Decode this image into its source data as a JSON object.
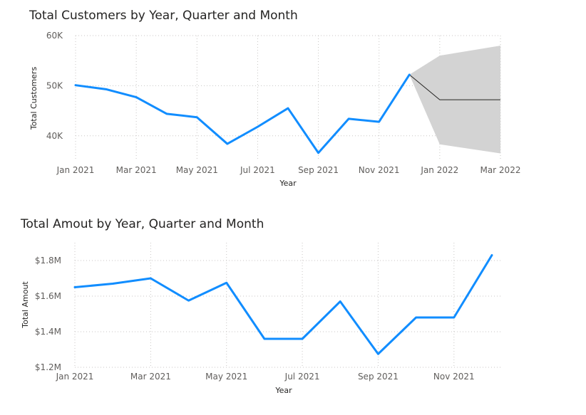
{
  "chart_data": [
    {
      "type": "line",
      "title": "Total Customers by Year, Quarter and Month",
      "xlabel": "Year",
      "ylabel": "Total Customers",
      "x_tick_labels": [
        "Jan 2021",
        "Mar 2021",
        "May 2021",
        "Jul 2021",
        "Sep 2021",
        "Nov 2021",
        "Jan 2022",
        "Mar 2022"
      ],
      "y_ticks": [
        40000,
        50000,
        60000
      ],
      "y_tick_labels": [
        "40K",
        "50K",
        "60K"
      ],
      "ylim": [
        35000,
        60000
      ],
      "grid": true,
      "series": [
        {
          "x": [
            "2021-01",
            "2021-02",
            "2021-03",
            "2021-04",
            "2021-05",
            "2021-06",
            "2021-07",
            "2021-08",
            "2021-09",
            "2021-10",
            "2021-11",
            "2021-12"
          ],
          "values": [
            50100,
            49300,
            47700,
            44400,
            43700,
            38400,
            41800,
            45500,
            36600,
            43400,
            42800,
            52200
          ],
          "color": "#118DFF"
        }
      ],
      "forecast": {
        "x": [
          "2021-12",
          "2022-01",
          "2022-02",
          "2022-03"
        ],
        "values": [
          52200,
          47200,
          47200,
          47200
        ],
        "upper": [
          52200,
          56000,
          57000,
          58000
        ],
        "lower": [
          52200,
          38300,
          37400,
          36500
        ],
        "line_color": "#252423",
        "band_color": "#d3d3d3"
      }
    },
    {
      "type": "line",
      "title": "Total Amout by Year, Quarter and Month",
      "xlabel": "Year",
      "ylabel": "Total Amout",
      "x_tick_labels": [
        "Jan 2021",
        "Mar 2021",
        "May 2021",
        "Jul 2021",
        "Sep 2021",
        "Nov 2021"
      ],
      "y_ticks": [
        1200000,
        1400000,
        1600000,
        1800000
      ],
      "y_tick_labels": [
        "$1.2M",
        "$1.4M",
        "$1.6M",
        "$1.8M"
      ],
      "ylim": [
        1200000,
        1800000
      ],
      "grid": true,
      "series": [
        {
          "x": [
            "2021-01",
            "2021-02",
            "2021-03",
            "2021-04",
            "2021-05",
            "2021-06",
            "2021-07",
            "2021-08",
            "2021-09",
            "2021-10",
            "2021-11",
            "2021-12"
          ],
          "values": [
            1650000,
            1670000,
            1700000,
            1575000,
            1675000,
            1360000,
            1360000,
            1570000,
            1275000,
            1480000,
            1480000,
            1830000
          ],
          "color": "#118DFF"
        }
      ]
    }
  ]
}
